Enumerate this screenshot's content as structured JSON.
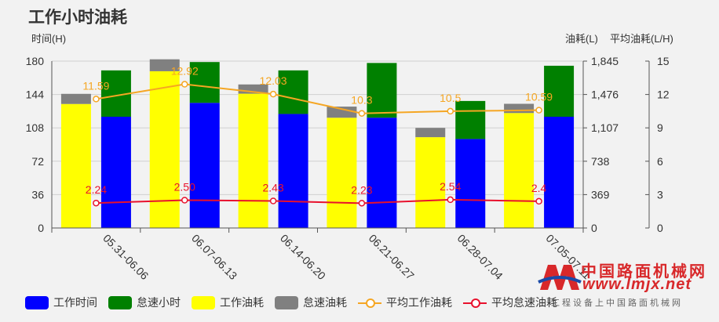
{
  "chart_data": {
    "type": "bar",
    "title": "工作小时油耗",
    "categories": [
      "05.31-06.06",
      "06.07-06.13",
      "06.14-06.20",
      "06.21-06.27",
      "06.28-07.04",
      "07.05-07.11"
    ],
    "left_axis": {
      "label": "时间(H)",
      "ticks": [
        "0",
        "36",
        "72",
        "108",
        "144",
        "180"
      ],
      "range": [
        0,
        180
      ]
    },
    "right_axis_1": {
      "label": "油耗(L)",
      "ticks": [
        "0",
        "369",
        "738",
        "1,107",
        "1,476",
        "1,845"
      ],
      "range": [
        0,
        1845
      ]
    },
    "right_axis_2": {
      "label": "平均油耗(L/H)",
      "ticks": [
        "0",
        "3",
        "6",
        "9",
        "12",
        "15"
      ],
      "range": [
        0,
        15
      ]
    },
    "stacks": [
      {
        "name": "工作时间",
        "axis": "left",
        "color": "#0000ff",
        "values": [
          120,
          135,
          123,
          119,
          96,
          120
        ]
      },
      {
        "name": "怠速小时",
        "axis": "left",
        "color": "#008000",
        "values": [
          50,
          44,
          47,
          59,
          41,
          55
        ]
      },
      {
        "name": "工作油耗",
        "axis": "right_1",
        "color": "#ffff00",
        "values": [
          1371,
          1733,
          1485,
          1219,
          1004,
          1271
        ]
      },
      {
        "name": "怠速油耗",
        "axis": "right_1",
        "color": "#808080",
        "values": [
          112,
          132,
          102,
          123,
          103,
          102
        ]
      }
    ],
    "lines": [
      {
        "name": "平均工作油耗",
        "axis": "right_2",
        "color": "#f5a623",
        "values": [
          11.59,
          12.92,
          12.03,
          10.3,
          10.5,
          10.59
        ],
        "labels": [
          "11.59",
          "12.92",
          "12.03",
          "10.3",
          "10.5",
          "10.59"
        ]
      },
      {
        "name": "平均怠速油耗",
        "axis": "right_2",
        "color": "#e8112d",
        "values": [
          2.24,
          2.5,
          2.43,
          2.23,
          2.54,
          2.4
        ],
        "labels": [
          "2.24",
          "2.50",
          "2.43",
          "2.23",
          "2.54",
          "2.4"
        ]
      }
    ],
    "legend": [
      "工作时间",
      "怠速小时",
      "工作油耗",
      "怠速油耗",
      "平均工作油耗",
      "平均怠速油耗"
    ],
    "grid": true,
    "legend_position": "bottom-left"
  },
  "watermark": {
    "cn": "中国路面机械网",
    "url": "www.lmjx.net",
    "sub": "工程设备上中国路面机械网"
  }
}
